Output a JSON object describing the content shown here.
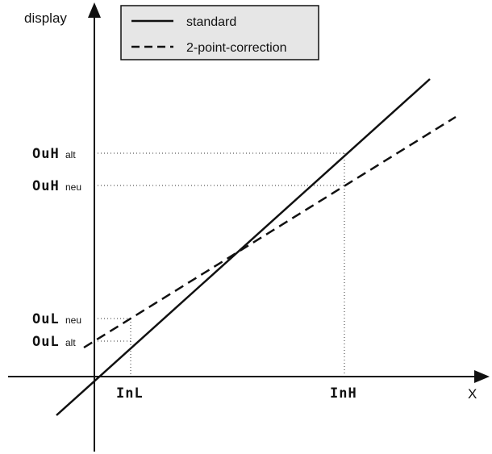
{
  "axes": {
    "y_label": "display",
    "x_label": "X"
  },
  "legend": {
    "items": [
      {
        "label": "standard",
        "style": "solid"
      },
      {
        "label": "2-point-correction",
        "style": "dashed"
      }
    ]
  },
  "y_markers": [
    {
      "code": "OuH",
      "suffix": "alt"
    },
    {
      "code": "OuH",
      "suffix": "neu"
    },
    {
      "code": "OuL",
      "suffix": "neu"
    },
    {
      "code": "OuL",
      "suffix": "alt"
    }
  ],
  "x_markers": [
    {
      "code": "InL"
    },
    {
      "code": "InH"
    }
  ],
  "colors": {
    "line": "#111111",
    "legend_bg": "#e6e6e6",
    "guide": "#333333"
  }
}
